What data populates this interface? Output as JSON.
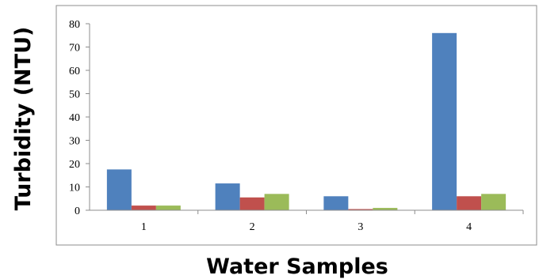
{
  "chart_data": {
    "type": "bar",
    "title": "",
    "xlabel": "Water Samples",
    "ylabel": "Turbidity (NTU)",
    "categories": [
      "1",
      "2",
      "3",
      "4"
    ],
    "ylim": [
      0,
      80
    ],
    "yticks": [
      0,
      10,
      20,
      30,
      40,
      50,
      60,
      70,
      80
    ],
    "grid": false,
    "legend": "none",
    "series": [
      {
        "color": "#4f81bd",
        "values": [
          17.5,
          11.5,
          6,
          76
        ]
      },
      {
        "color": "#c0504d",
        "values": [
          2,
          5.5,
          0.5,
          6
        ]
      },
      {
        "color": "#9bbb59",
        "values": [
          2,
          7,
          1,
          7
        ]
      }
    ]
  }
}
